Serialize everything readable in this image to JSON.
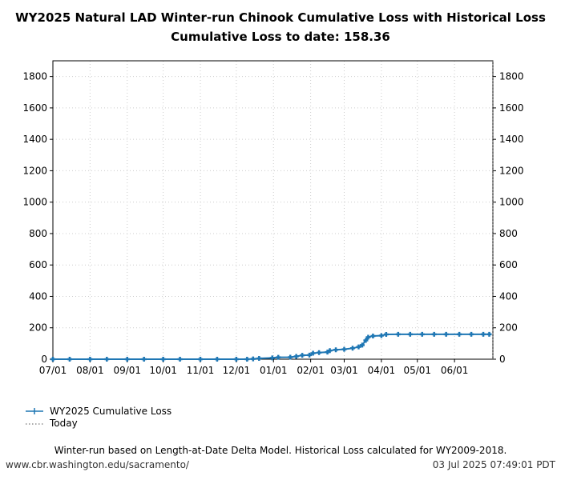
{
  "chart_data": {
    "type": "line",
    "title": "WY2025 Natural LAD Winter-run Chinook Cumulative Loss with Historical Loss",
    "subtitle": "Cumulative Loss to date: 158.36",
    "xlabel": "",
    "ylabel": "",
    "xlim": [
      "2024-07-01",
      "2025-07-03"
    ],
    "ylim": [
      0,
      1900
    ],
    "xticks": [
      {
        "date": "2024-07-01",
        "label": "07/01"
      },
      {
        "date": "2024-08-01",
        "label": "08/01"
      },
      {
        "date": "2024-09-01",
        "label": "09/01"
      },
      {
        "date": "2024-10-01",
        "label": "10/01"
      },
      {
        "date": "2024-11-01",
        "label": "11/01"
      },
      {
        "date": "2024-12-01",
        "label": "12/01"
      },
      {
        "date": "2025-01-01",
        "label": "01/01"
      },
      {
        "date": "2025-02-01",
        "label": "02/01"
      },
      {
        "date": "2025-03-01",
        "label": "03/01"
      },
      {
        "date": "2025-04-01",
        "label": "04/01"
      },
      {
        "date": "2025-05-01",
        "label": "05/01"
      },
      {
        "date": "2025-06-01",
        "label": "06/01"
      }
    ],
    "yticks": [
      0,
      200,
      400,
      600,
      800,
      1000,
      1200,
      1400,
      1600,
      1800
    ],
    "grid": true,
    "legend_placement": "bottom-left",
    "series": [
      {
        "name": "WY2025 Cumulative Loss",
        "color": "#1f77b4",
        "marker": "plus",
        "x": [
          "2024-07-01",
          "2024-07-15",
          "2024-08-01",
          "2024-08-15",
          "2024-09-01",
          "2024-09-15",
          "2024-10-01",
          "2024-10-15",
          "2024-11-01",
          "2024-11-15",
          "2024-12-01",
          "2024-12-10",
          "2024-12-15",
          "2024-12-20",
          "2024-12-31",
          "2025-01-05",
          "2025-01-15",
          "2025-01-20",
          "2025-01-25",
          "2025-01-31",
          "2025-02-03",
          "2025-02-08",
          "2025-02-15",
          "2025-02-17",
          "2025-02-22",
          "2025-03-01",
          "2025-03-08",
          "2025-03-13",
          "2025-03-16",
          "2025-03-19",
          "2025-03-21",
          "2025-03-25",
          "2025-04-01",
          "2025-04-05",
          "2025-04-15",
          "2025-04-25",
          "2025-05-05",
          "2025-05-15",
          "2025-05-25",
          "2025-06-05",
          "2025-06-15",
          "2025-06-25",
          "2025-06-30"
        ],
        "y": [
          0,
          0,
          0,
          0,
          0,
          0,
          0,
          0,
          0,
          0,
          0,
          0,
          2,
          5,
          8,
          12,
          13,
          18,
          25,
          26,
          38,
          42,
          45,
          55,
          60,
          63,
          70,
          78,
          90,
          120,
          140,
          148,
          150,
          158,
          158.36,
          158.36,
          158.36,
          158.36,
          158.36,
          158.36,
          158.36,
          158.36,
          158.36
        ]
      },
      {
        "name": "Today",
        "color": "#555555",
        "style": "dotted",
        "date": "2025-07-03"
      }
    ]
  },
  "footer": {
    "note": "Winter-run based on Length-at-Date Delta Model. Historical Loss calculated for WY2009-2018.",
    "url": "www.cbr.washington.edu/sacramento/",
    "timestamp": "03 Jul 2025 07:49:01 PDT"
  }
}
